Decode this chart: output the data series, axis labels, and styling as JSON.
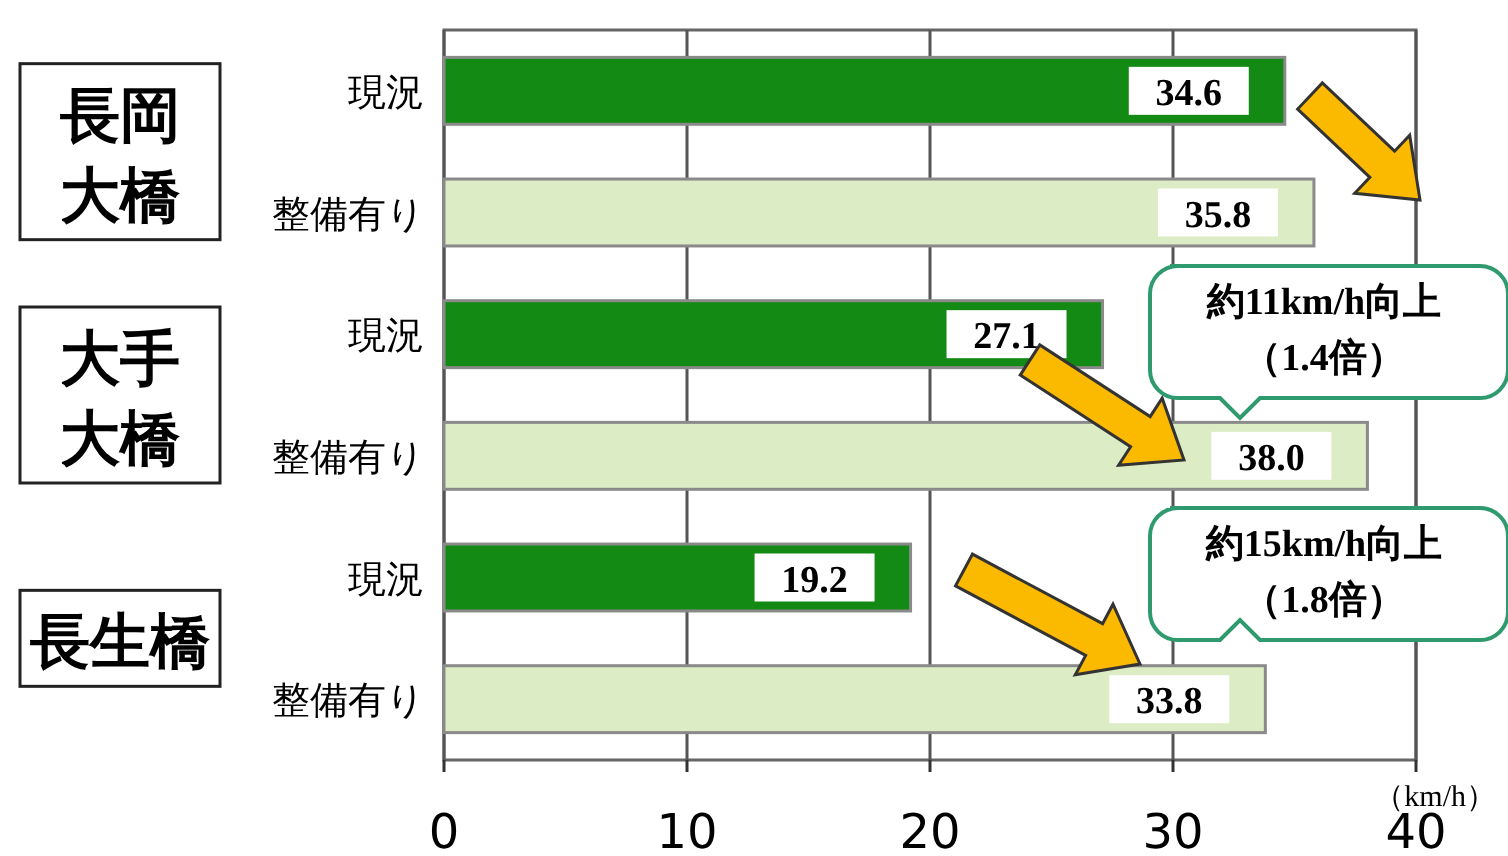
{
  "chart_data": {
    "type": "bar",
    "orientation": "horizontal",
    "categories": [
      "現況",
      "整備有り",
      "現況",
      "整備有り",
      "現況",
      "整備有り"
    ],
    "values": [
      34.6,
      35.8,
      27.1,
      38.0,
      19.2,
      33.8
    ],
    "colors": [
      "#138a13",
      "#dcecc4",
      "#138a13",
      "#dcecc4",
      "#138a13",
      "#dcecc4"
    ],
    "value_labels": [
      "34.6",
      "35.8",
      "27.1",
      "38.0",
      "19.2",
      "33.8"
    ],
    "xlim": [
      0,
      40
    ],
    "xticks": [
      0,
      10,
      20,
      30,
      40
    ],
    "grid": "x",
    "xlabel": "（km/h）",
    "annotations": [
      "長岡",
      "大橋",
      "大手",
      "大橋",
      "長生橋",
      "約11km/h向上",
      "（1.4倍）",
      "約15km/h向上",
      "（1.8倍）"
    ]
  }
}
